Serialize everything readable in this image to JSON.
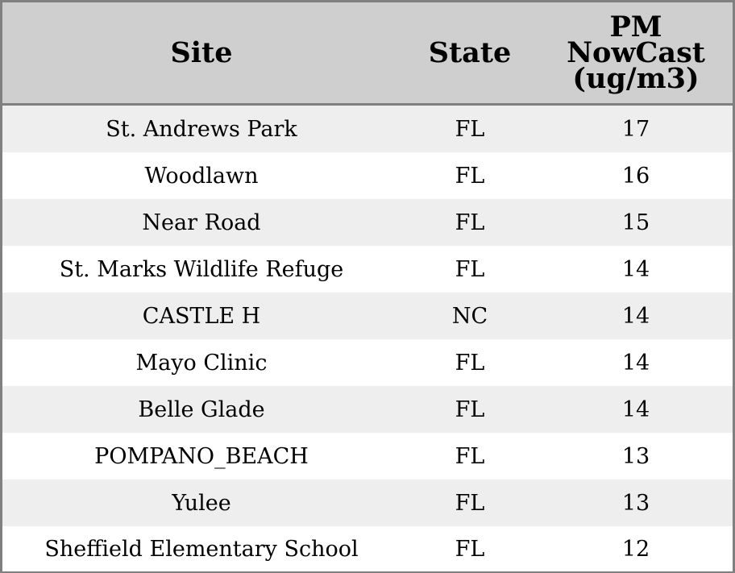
{
  "chart_data": {
    "type": "table",
    "columns": [
      "Site",
      "State",
      "PM NowCast (ug/m3)"
    ],
    "rows": [
      {
        "site": "St. Andrews Park",
        "state": "FL",
        "pm": 17
      },
      {
        "site": "Woodlawn",
        "state": "FL",
        "pm": 16
      },
      {
        "site": "Near Road",
        "state": "FL",
        "pm": 15
      },
      {
        "site": "St. Marks Wildlife Refuge",
        "state": "FL",
        "pm": 14
      },
      {
        "site": "CASTLE H",
        "state": "NC",
        "pm": 14
      },
      {
        "site": "Mayo Clinic",
        "state": "FL",
        "pm": 14
      },
      {
        "site": "Belle Glade",
        "state": "FL",
        "pm": 14
      },
      {
        "site": "POMPANO_BEACH",
        "state": "FL",
        "pm": 13
      },
      {
        "site": "Yulee",
        "state": "FL",
        "pm": 13
      },
      {
        "site": "Sheffield Elementary School",
        "state": "FL",
        "pm": 12
      }
    ]
  },
  "table": {
    "header": {
      "site": "Site",
      "state": "State",
      "pm_line1": "PM",
      "pm_line2": "NowCast",
      "pm_line3": "(ug/m3)"
    }
  },
  "colors": {
    "header_bg": "#cfcfcf",
    "row_alt_bg": "#eeeeee",
    "row_bg": "#ffffff",
    "border": "#808080"
  }
}
